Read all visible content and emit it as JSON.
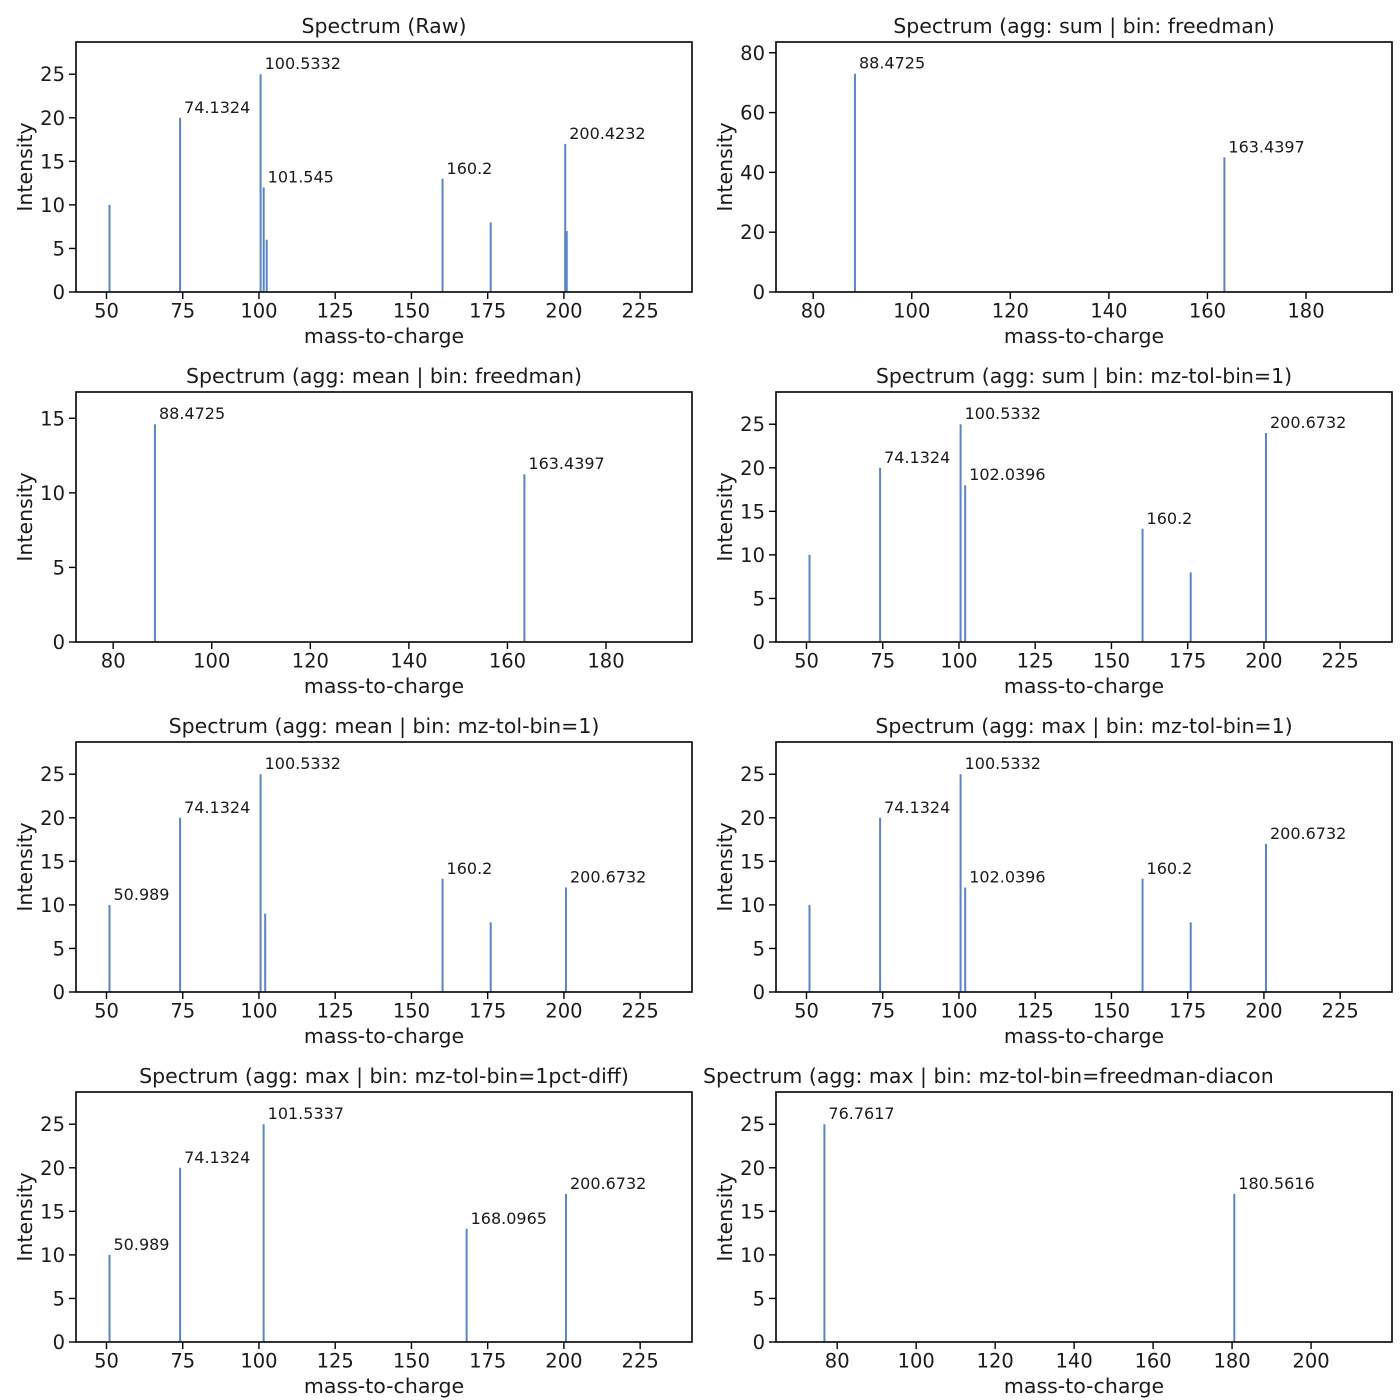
{
  "figure": {
    "background": "#ffffff",
    "stem_color": "#5b84c4",
    "axis_color": "#000000",
    "text_color": "#1a1a1a",
    "xlabel": "mass-to-charge",
    "ylabel": "Intensity"
  },
  "chart_data": [
    {
      "type": "stem",
      "id": "spectrum-raw",
      "title": "Spectrum (Raw)",
      "title_align": "center",
      "xlabel": "mass-to-charge",
      "ylabel": "Intensity",
      "xlim": [
        40,
        242
      ],
      "ylim": [
        0,
        28.7
      ],
      "xticks": [
        50,
        75,
        100,
        125,
        150,
        175,
        200,
        225
      ],
      "yticks": [
        0,
        5,
        10,
        15,
        20,
        25
      ],
      "grid": false,
      "peaks": [
        {
          "mz": 50.989,
          "intensity": 10
        },
        {
          "mz": 74.1324,
          "intensity": 20,
          "label": "74.1324"
        },
        {
          "mz": 100.5332,
          "intensity": 25,
          "label": "100.5332"
        },
        {
          "mz": 101.545,
          "intensity": 12,
          "label": "101.545"
        },
        {
          "mz": 102.534,
          "intensity": 6
        },
        {
          "mz": 160.2,
          "intensity": 13,
          "label": "160.2"
        },
        {
          "mz": 175.993,
          "intensity": 8
        },
        {
          "mz": 200.4232,
          "intensity": 17,
          "label": "200.4232"
        },
        {
          "mz": 200.9232,
          "intensity": 7
        }
      ]
    },
    {
      "type": "stem",
      "id": "spectrum-agg-sum-bin-freedman",
      "title": "Spectrum (agg: sum | bin: freedman)",
      "title_align": "center",
      "xlabel": "mass-to-charge",
      "ylabel": "Intensity",
      "xlim": [
        72.45,
        197.45
      ],
      "ylim": [
        0,
        83.6
      ],
      "xticks": [
        80,
        100,
        120,
        140,
        160,
        180
      ],
      "yticks": [
        0,
        20,
        40,
        60,
        80
      ],
      "grid": false,
      "peaks": [
        {
          "mz": 88.4725,
          "intensity": 73,
          "label": "88.4725"
        },
        {
          "mz": 163.4397,
          "intensity": 45,
          "label": "163.4397"
        }
      ]
    },
    {
      "type": "stem",
      "id": "spectrum-agg-mean-bin-freedman",
      "title": "Spectrum (agg: mean | bin: freedman)",
      "title_align": "center",
      "xlabel": "mass-to-charge",
      "ylabel": "Intensity",
      "xlim": [
        72.45,
        197.45
      ],
      "ylim": [
        0,
        16.76
      ],
      "xticks": [
        80,
        100,
        120,
        140,
        160,
        180
      ],
      "yticks": [
        0,
        5,
        10,
        15
      ],
      "grid": false,
      "peaks": [
        {
          "mz": 88.4725,
          "intensity": 14.6,
          "label": "88.4725"
        },
        {
          "mz": 163.4397,
          "intensity": 11.25,
          "label": "163.4397"
        }
      ]
    },
    {
      "type": "stem",
      "id": "spectrum-agg-sum-bin-mz-tol-bin-1",
      "title": "Spectrum (agg: sum | bin: mz-tol-bin=1)",
      "title_align": "center",
      "xlabel": "mass-to-charge",
      "ylabel": "Intensity",
      "xlim": [
        40,
        242
      ],
      "ylim": [
        0,
        28.7
      ],
      "xticks": [
        50,
        75,
        100,
        125,
        150,
        175,
        200,
        225
      ],
      "yticks": [
        0,
        5,
        10,
        15,
        20,
        25
      ],
      "grid": false,
      "peaks": [
        {
          "mz": 50.989,
          "intensity": 10
        },
        {
          "mz": 74.1324,
          "intensity": 20,
          "label": "74.1324"
        },
        {
          "mz": 100.5332,
          "intensity": 25,
          "label": "100.5332"
        },
        {
          "mz": 102.0396,
          "intensity": 18,
          "label": "102.0396"
        },
        {
          "mz": 160.2,
          "intensity": 13,
          "label": "160.2"
        },
        {
          "mz": 175.993,
          "intensity": 8
        },
        {
          "mz": 200.6732,
          "intensity": 24,
          "label": "200.6732"
        }
      ]
    },
    {
      "type": "stem",
      "id": "spectrum-agg-mean-bin-mz-tol-bin-1",
      "title": "Spectrum (agg: mean | bin: mz-tol-bin=1)",
      "title_align": "center",
      "xlabel": "mass-to-charge",
      "ylabel": "Intensity",
      "xlim": [
        40,
        242
      ],
      "ylim": [
        0,
        28.7
      ],
      "xticks": [
        50,
        75,
        100,
        125,
        150,
        175,
        200,
        225
      ],
      "yticks": [
        0,
        5,
        10,
        15,
        20,
        25
      ],
      "grid": false,
      "peaks": [
        {
          "mz": 50.989,
          "intensity": 10,
          "label": "50.989"
        },
        {
          "mz": 74.1324,
          "intensity": 20,
          "label": "74.1324"
        },
        {
          "mz": 100.5332,
          "intensity": 25,
          "label": "100.5332"
        },
        {
          "mz": 102.0396,
          "intensity": 9
        },
        {
          "mz": 160.2,
          "intensity": 13,
          "label": "160.2"
        },
        {
          "mz": 175.993,
          "intensity": 8
        },
        {
          "mz": 200.6732,
          "intensity": 12,
          "label": "200.6732"
        }
      ]
    },
    {
      "type": "stem",
      "id": "spectrum-agg-max-bin-mz-tol-bin-1",
      "title": "Spectrum (agg: max | bin: mz-tol-bin=1)",
      "title_align": "center",
      "xlabel": "mass-to-charge",
      "ylabel": "Intensity",
      "xlim": [
        40,
        242
      ],
      "ylim": [
        0,
        28.7
      ],
      "xticks": [
        50,
        75,
        100,
        125,
        150,
        175,
        200,
        225
      ],
      "yticks": [
        0,
        5,
        10,
        15,
        20,
        25
      ],
      "grid": false,
      "peaks": [
        {
          "mz": 50.989,
          "intensity": 10
        },
        {
          "mz": 74.1324,
          "intensity": 20,
          "label": "74.1324"
        },
        {
          "mz": 100.5332,
          "intensity": 25,
          "label": "100.5332"
        },
        {
          "mz": 102.0396,
          "intensity": 12,
          "label": "102.0396"
        },
        {
          "mz": 160.2,
          "intensity": 13,
          "label": "160.2"
        },
        {
          "mz": 175.993,
          "intensity": 8
        },
        {
          "mz": 200.6732,
          "intensity": 17,
          "label": "200.6732"
        }
      ]
    },
    {
      "type": "stem",
      "id": "spectrum-agg-max-bin-mz-tol-bin-1pct-diff",
      "title": "Spectrum (agg: max | bin: mz-tol-bin=1pct-diff)",
      "title_align": "center",
      "xlabel": "mass-to-charge",
      "ylabel": "Intensity",
      "xlim": [
        40,
        242
      ],
      "ylim": [
        0,
        28.7
      ],
      "xticks": [
        50,
        75,
        100,
        125,
        150,
        175,
        200,
        225
      ],
      "yticks": [
        0,
        5,
        10,
        15,
        20,
        25
      ],
      "grid": false,
      "peaks": [
        {
          "mz": 50.989,
          "intensity": 10,
          "label": "50.989"
        },
        {
          "mz": 74.1324,
          "intensity": 20,
          "label": "74.1324"
        },
        {
          "mz": 101.5337,
          "intensity": 25,
          "label": "101.5337"
        },
        {
          "mz": 168.0965,
          "intensity": 13,
          "label": "168.0965"
        },
        {
          "mz": 200.6732,
          "intensity": 17,
          "label": "200.6732"
        }
      ]
    },
    {
      "type": "stem",
      "id": "spectrum-agg-max-bin-mz-tol-bin-freedman-diaconis",
      "title": "Spectrum (agg: max | bin: mz-tol-bin=freedman-diacon",
      "title_align": "left",
      "xlabel": "mass-to-charge",
      "ylabel": "Intensity",
      "xlim": [
        64.5,
        220.5
      ],
      "ylim": [
        0,
        28.7
      ],
      "xticks": [
        80,
        100,
        120,
        140,
        160,
        180,
        200
      ],
      "yticks": [
        0,
        5,
        10,
        15,
        20,
        25
      ],
      "grid": false,
      "peaks": [
        {
          "mz": 76.7617,
          "intensity": 25,
          "label": "76.7617"
        },
        {
          "mz": 180.5616,
          "intensity": 17,
          "label": "180.5616"
        }
      ]
    }
  ]
}
